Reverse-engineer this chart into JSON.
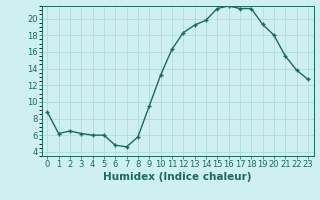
{
  "x": [
    0,
    1,
    2,
    3,
    4,
    5,
    6,
    7,
    8,
    9,
    10,
    11,
    12,
    13,
    14,
    15,
    16,
    17,
    18,
    19,
    20,
    21,
    22,
    23
  ],
  "y": [
    8.8,
    6.2,
    6.5,
    6.2,
    6.0,
    6.0,
    4.8,
    4.6,
    5.8,
    9.5,
    13.2,
    16.3,
    18.3,
    19.2,
    19.8,
    21.2,
    21.5,
    21.2,
    21.2,
    19.3,
    18.0,
    15.5,
    13.8,
    12.7
  ],
  "xlabel": "Humidex (Indice chaleur)",
  "bg_color": "#cff0f0",
  "line_color": "#1a6b5a",
  "grid_color": "#aad8d8",
  "xlim": [
    -0.5,
    23.5
  ],
  "ylim": [
    3.5,
    21.5
  ],
  "yticks": [
    4,
    6,
    8,
    10,
    12,
    14,
    16,
    18,
    20
  ],
  "xtick_labels": [
    "0",
    "1",
    "2",
    "3",
    "4",
    "5",
    "6",
    "7",
    "8",
    "9",
    "10",
    "11",
    "12",
    "13",
    "14",
    "15",
    "16",
    "17",
    "18",
    "19",
    "20",
    "21",
    "22",
    "23"
  ],
  "tick_fontsize": 6,
  "label_fontsize": 7.5
}
